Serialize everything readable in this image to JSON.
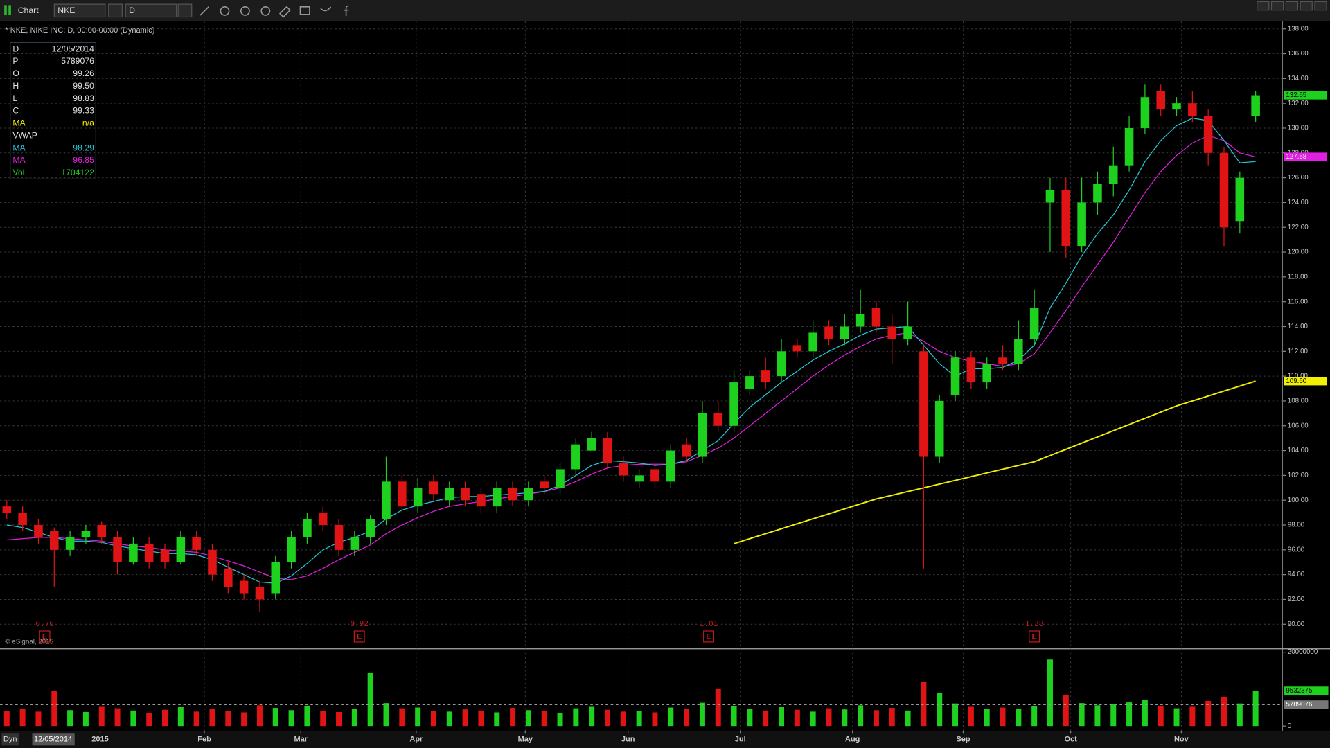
{
  "toolbar": {
    "title": "Chart",
    "symbol": "NKE",
    "interval": "D"
  },
  "status_bar": {
    "mode": "Dyn",
    "date": "12/05/2014"
  },
  "chart_data": {
    "type": "candlestick",
    "title": "* NKE, NIKE INC, D, 00:00-00:00 (Dynamic)",
    "watermark": "© eSignal, 2015",
    "up_color": "#1fd11f",
    "down_color": "#e01414",
    "open": [
      99.5,
      99,
      98,
      97.5,
      96,
      97,
      98,
      97,
      95,
      96.5,
      96,
      95,
      97,
      96,
      94.5,
      93.5,
      93,
      92.5,
      95,
      97,
      99,
      98,
      96,
      97,
      98.5,
      101.5,
      99.5,
      101.5,
      100,
      101,
      100.5,
      99.5,
      101,
      100,
      101.5,
      101,
      102.5,
      104,
      105,
      103,
      101.5,
      102.5,
      101.5,
      104.5,
      103.5,
      107,
      106,
      109,
      110.5,
      110,
      112.5,
      112,
      114,
      113,
      114,
      115.5,
      114,
      113,
      112,
      103.5,
      108.5,
      111.5,
      109.5,
      111.5,
      111,
      113,
      124,
      125,
      120.5,
      124,
      125.5,
      127,
      130,
      133,
      131.5,
      132,
      131,
      128,
      122.5,
      131
    ],
    "high": [
      100,
      99.5,
      98.5,
      97.8,
      97.5,
      98,
      98.3,
      97.5,
      97,
      97,
      96.5,
      97.5,
      97.5,
      96.5,
      95,
      94,
      93.5,
      95.5,
      97.5,
      99,
      99.5,
      98.5,
      97.5,
      98.8,
      103.5,
      102,
      101.8,
      102,
      101.5,
      101.5,
      101,
      101.5,
      101.5,
      101.5,
      102,
      103,
      105,
      105.5,
      105.5,
      103.5,
      102.5,
      103,
      104.5,
      105,
      108,
      108,
      110.5,
      110.5,
      111.5,
      113,
      113,
      114.5,
      114.5,
      115,
      117,
      116,
      115,
      116,
      112.5,
      108.5,
      112,
      112,
      111.5,
      112.5,
      114.5,
      117,
      126,
      126,
      126,
      126.5,
      128.5,
      131,
      133.5,
      133.5,
      132.5,
      133,
      131.5,
      128.5,
      126.5,
      133
    ],
    "low": [
      98.5,
      97.5,
      96.5,
      93,
      95.5,
      96.5,
      96.5,
      94,
      94.8,
      94.5,
      94.5,
      94.8,
      95.5,
      93.5,
      92.5,
      92,
      91,
      92,
      94.5,
      96.5,
      97.5,
      95.5,
      95.5,
      96.5,
      98,
      99,
      99,
      100,
      99.5,
      99.5,
      99,
      99,
      99.5,
      99.5,
      100.5,
      100.5,
      102,
      104,
      102.5,
      101.5,
      101,
      101,
      101,
      103,
      103,
      105.5,
      105.5,
      108.5,
      109,
      109.5,
      111.5,
      111.5,
      112.5,
      112.5,
      113.5,
      113.5,
      111,
      112.5,
      94.5,
      103,
      108,
      109,
      109,
      110.5,
      110.5,
      112.5,
      120,
      119.5,
      120,
      123,
      124.5,
      126.5,
      129.5,
      131,
      131,
      130.5,
      127,
      120.5,
      121.5,
      130.5
    ],
    "close": [
      99,
      98,
      97,
      96,
      97,
      97.5,
      97,
      95,
      96.5,
      95,
      95,
      97,
      96,
      94,
      93,
      92.5,
      92,
      95,
      97,
      98.5,
      98,
      96,
      97,
      98.5,
      101.5,
      99.5,
      101,
      100.5,
      101,
      100,
      99.5,
      101,
      100,
      101,
      101,
      102.5,
      104.5,
      105,
      103,
      102,
      102,
      101.5,
      104,
      103.5,
      107,
      106,
      109.5,
      110,
      109.5,
      112,
      112,
      113.5,
      113,
      114,
      115,
      114,
      113,
      114,
      103.5,
      108,
      111.5,
      109.5,
      111,
      111,
      113,
      115.5,
      125,
      120.5,
      124,
      125.5,
      127,
      130,
      132.5,
      131.5,
      132,
      131,
      128,
      122,
      126,
      132.65
    ],
    "xlim": [
      -0.43,
      80.7
    ],
    "xticks": [
      {
        "value": 5.9,
        "label": "2015"
      },
      {
        "value": 12.5,
        "label": "Feb"
      },
      {
        "value": 18.6,
        "label": "Mar"
      },
      {
        "value": 25.9,
        "label": "Apr"
      },
      {
        "value": 32.8,
        "label": "May"
      },
      {
        "value": 39.3,
        "label": "Jun"
      },
      {
        "value": 46.4,
        "label": "Jul"
      },
      {
        "value": 53.5,
        "label": "Aug"
      },
      {
        "value": 60.5,
        "label": "Sep"
      },
      {
        "value": 67.3,
        "label": "Oct"
      },
      {
        "value": 74.3,
        "label": "Nov"
      }
    ],
    "ylim": [
      88.02,
      138.62
    ],
    "yticks": [
      {
        "value": 90,
        "label": "90.00"
      },
      {
        "value": 92,
        "label": "92.00"
      },
      {
        "value": 94,
        "label": "94.00"
      },
      {
        "value": 96,
        "label": "96.00"
      },
      {
        "value": 98,
        "label": "98.00"
      },
      {
        "value": 100,
        "label": "100.00"
      },
      {
        "value": 102,
        "label": "102.00"
      },
      {
        "value": 104,
        "label": "104.00"
      },
      {
        "value": 106,
        "label": "106.00"
      },
      {
        "value": 108,
        "label": "108.00"
      },
      {
        "value": 110,
        "label": "110.00"
      },
      {
        "value": 112,
        "label": "112.00"
      },
      {
        "value": 114,
        "label": "114.00"
      },
      {
        "value": 116,
        "label": "116.00"
      },
      {
        "value": 118,
        "label": "118.00"
      },
      {
        "value": 120,
        "label": "120.00"
      },
      {
        "value": 122,
        "label": "122.00"
      },
      {
        "value": 124,
        "label": "124.00"
      },
      {
        "value": 126,
        "label": "126.00"
      },
      {
        "value": 128,
        "label": "128.00"
      },
      {
        "value": 130,
        "label": "130.00"
      },
      {
        "value": 132,
        "label": "132.00"
      },
      {
        "value": 134,
        "label": "134.00"
      },
      {
        "value": 136,
        "label": "136.00"
      },
      {
        "value": 138,
        "label": "138.00"
      }
    ],
    "grid": true,
    "series": [
      {
        "color": "#e020e0",
        "values": [
          96.8,
          96.9,
          97,
          97,
          96.9,
          96.8,
          96.7,
          96.5,
          96.3,
          96.2,
          96,
          95.9,
          95.8,
          95.5,
          95.1,
          94.7,
          94.2,
          93.7,
          93.6,
          93.9,
          94.5,
          95.2,
          95.8,
          96.4,
          97.3,
          98,
          98.6,
          99.1,
          99.5,
          99.7,
          99.9,
          100.1,
          100.3,
          100.5,
          100.7,
          101,
          101.5,
          102.1,
          102.6,
          102.8,
          102.9,
          102.9,
          102.9,
          103.1,
          103.6,
          104.2,
          105,
          106,
          107,
          108,
          109,
          110,
          110.9,
          111.7,
          112.4,
          113,
          113.3,
          113.5,
          112.8,
          112,
          111.5,
          111.2,
          111,
          110.8,
          111,
          111.8,
          113.5,
          115.3,
          117.2,
          119,
          120.8,
          122.8,
          124.8,
          126.5,
          127.8,
          128.8,
          129.4,
          129,
          128,
          127.68
        ]
      },
      {
        "color": "#25c8d8",
        "values": [
          98,
          97.8,
          97.4,
          97,
          96.7,
          96.7,
          96.6,
          96.3,
          96.1,
          95.9,
          95.7,
          95.7,
          95.6,
          95.2,
          94.6,
          94,
          93.4,
          93.3,
          93.9,
          94.9,
          96,
          96.6,
          97,
          97.5,
          98.5,
          99.2,
          99.6,
          99.9,
          100.2,
          100.3,
          100.3,
          100.4,
          100.5,
          100.6,
          100.7,
          101.2,
          102,
          102.8,
          103.2,
          103.1,
          103,
          102.8,
          102.9,
          103.2,
          104,
          104.8,
          106.2,
          107.5,
          108.5,
          109.5,
          110.4,
          111.3,
          112,
          112.6,
          113.3,
          113.8,
          113.9,
          114,
          112.5,
          111,
          110,
          110.6,
          110.6,
          110.7,
          111.3,
          112.5,
          115.5,
          117.5,
          119.7,
          121.5,
          123,
          125,
          127.3,
          129,
          130.2,
          130.8,
          130.6,
          129,
          127.2,
          127.3
        ]
      },
      {
        "color": "#f0f000",
        "values": [
          null,
          null,
          null,
          null,
          null,
          null,
          null,
          null,
          null,
          null,
          null,
          null,
          null,
          null,
          null,
          null,
          null,
          null,
          null,
          null,
          null,
          null,
          null,
          null,
          null,
          null,
          null,
          null,
          null,
          null,
          null,
          null,
          null,
          null,
          null,
          null,
          null,
          null,
          null,
          null,
          null,
          null,
          null,
          null,
          null,
          null,
          96.5,
          96.9,
          97.3,
          97.7,
          98.1,
          98.5,
          98.9,
          99.3,
          99.7,
          100.1,
          100.4,
          100.7,
          101,
          101.3,
          101.6,
          101.9,
          102.2,
          102.5,
          102.8,
          103.1,
          103.6,
          104.1,
          104.6,
          105.1,
          105.6,
          106.1,
          106.6,
          107.1,
          107.6,
          108,
          108.4,
          108.8,
          109.2,
          109.6
        ]
      }
    ],
    "price_labels": [
      {
        "value": 132.65,
        "label": "132.65",
        "color": "#1fd11f"
      },
      {
        "value": 127.68,
        "label": "127.68",
        "color": "#e020e0"
      },
      {
        "value": 109.6,
        "label": "109.60",
        "color": "#f0f000"
      }
    ],
    "earnings": {
      "marker": "E",
      "color": "#c41a1a",
      "x": [
        2.4,
        22.3,
        44.4,
        65
      ],
      "values": [
        0.76,
        0.92,
        1.01,
        1.38
      ]
    },
    "data_window": {
      "rows": [
        {
          "label": "D",
          "value": "12/05/2014",
          "color": "#e0e0e0"
        },
        {
          "label": "P",
          "value": "5789076",
          "color": "#e0e0e0"
        },
        {
          "label": "O",
          "value": "99.26",
          "color": "#e0e0e0"
        },
        {
          "label": "H",
          "value": "99.50",
          "color": "#e0e0e0"
        },
        {
          "label": "L",
          "value": "98.83",
          "color": "#e0e0e0"
        },
        {
          "label": "C",
          "value": "99.33",
          "color": "#e0e0e0"
        },
        {
          "label": "MA",
          "value": "n/a",
          "color": "#f0f000"
        },
        {
          "label": "VWAP",
          "color": "#e0e0e0"
        },
        {
          "label": "MA",
          "value": "98.29",
          "color": "#25c8d8"
        },
        {
          "label": "MA",
          "value": "96.85",
          "color": "#e020e0"
        },
        {
          "label": "Vol",
          "value": "1704122",
          "color": "#1fd11f"
        }
      ]
    },
    "volume": {
      "type": "bar",
      "values": [
        4100000,
        4600000,
        3900000,
        9500000,
        4300000,
        3800000,
        5200000,
        4800000,
        4200000,
        3600000,
        4400000,
        5100000,
        3900000,
        4700000,
        4100000,
        3700000,
        5600000,
        4900000,
        4300000,
        5500000,
        4000000,
        3800000,
        4600000,
        14500000,
        6200000,
        4800000,
        5000000,
        4100000,
        3900000,
        4500000,
        4200000,
        3700000,
        4900000,
        4300000,
        4000000,
        3600000,
        4800000,
        5200000,
        4400000,
        3900000,
        4100000,
        3700000,
        5000000,
        4600000,
        6300000,
        10000000,
        5300000,
        4700000,
        4200000,
        5100000,
        4400000,
        3900000,
        4800000,
        4500000,
        5600000,
        4300000,
        4900000,
        4200000,
        12000000,
        9000000,
        6100000,
        5200000,
        4700000,
        5000000,
        4600000,
        5400000,
        18000000,
        8500000,
        6200000,
        5600000,
        5900000,
        6400000,
        7000000,
        5500000,
        4800000,
        5200000,
        6800000,
        7900000,
        6100000,
        9532375
      ],
      "ylim": [
        -1380000,
        20690000
      ],
      "yticks": [
        20000000,
        0
      ],
      "average": 5789076
    }
  }
}
